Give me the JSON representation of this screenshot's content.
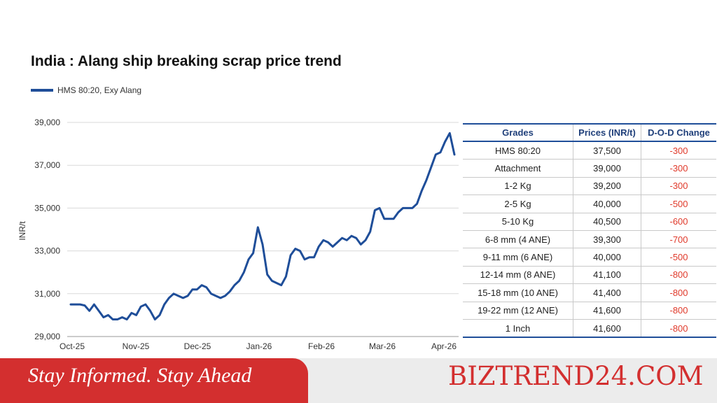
{
  "chart_data": {
    "type": "line",
    "title": "India : Alang ship breaking scrap price trend",
    "ylabel": "INR/t",
    "xlabel": "",
    "ylim": [
      29000,
      39000
    ],
    "yticks": [
      "29,000",
      "31,000",
      "33,000",
      "35,000",
      "37,000",
      "39,000"
    ],
    "ytick_values": [
      29000,
      31000,
      33000,
      35000,
      37000,
      39000
    ],
    "xticks": [
      "Oct-25",
      "Nov-25",
      "Dec-25",
      "Jan-26",
      "Feb-26",
      "Mar-26",
      "Apr-26"
    ],
    "grid": "horizontal",
    "legend_position": "top-left",
    "series": [
      {
        "name": "HMS 80:20, Exy Alang",
        "color": "#1f4e99",
        "values": [
          30500,
          30500,
          30500,
          30450,
          30200,
          30500,
          30200,
          29900,
          30000,
          29800,
          29800,
          29900,
          29800,
          30100,
          30000,
          30400,
          30500,
          30200,
          29800,
          30000,
          30500,
          30800,
          31000,
          30900,
          30800,
          30900,
          31200,
          31200,
          31400,
          31300,
          31000,
          30900,
          30800,
          30900,
          31100,
          31400,
          31600,
          32000,
          32600,
          32900,
          34100,
          33300,
          31900,
          31600,
          31500,
          31400,
          31800,
          32800,
          33100,
          33000,
          32600,
          32700,
          32700,
          33200,
          33500,
          33400,
          33200,
          33400,
          33600,
          33500,
          33700,
          33600,
          33300,
          33500,
          33900,
          34900,
          35000,
          34500,
          34500,
          34500,
          34800,
          35000,
          35000,
          35000,
          35200,
          35800,
          36300,
          36900,
          37500,
          37600,
          38100,
          38500,
          37500
        ]
      }
    ]
  },
  "table": {
    "headers": [
      "Grades",
      "Prices (INR/t)",
      "D-O-D Change"
    ],
    "rows": [
      [
        "HMS 80:20",
        "37,500",
        "-300"
      ],
      [
        "Attachment",
        "39,000",
        "-300"
      ],
      [
        "1-2 Kg",
        "39,200",
        "-300"
      ],
      [
        "2-5 Kg",
        "40,000",
        "-500"
      ],
      [
        "5-10 Kg",
        "40,500",
        "-600"
      ],
      [
        "6-8 mm (4 ANE)",
        "39,300",
        "-700"
      ],
      [
        "9-11 mm (6 ANE)",
        "40,000",
        "-500"
      ],
      [
        "12-14 mm (8 ANE)",
        "41,100",
        "-800"
      ],
      [
        "15-18 mm (10 ANE)",
        "41,400",
        "-800"
      ],
      [
        "19-22 mm (12 ANE)",
        "41,600",
        "-800"
      ],
      [
        "1 Inch",
        "41,600",
        "-800"
      ]
    ]
  },
  "banner": {
    "tagline": "Stay Informed. Stay Ahead",
    "brand": "BIZTREND24.COM"
  },
  "colors": {
    "line": "#1f4e99",
    "negative": "#e03a2b",
    "brand": "#d32f2f"
  }
}
